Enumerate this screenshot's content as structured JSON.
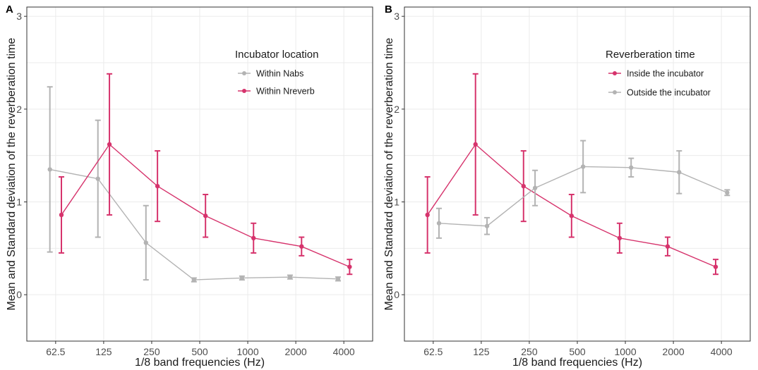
{
  "chart_data": [
    {
      "type": "line",
      "panel_label": "A",
      "xlabel": "1/8 band frequencies (Hz)",
      "ylabel": "Mean and Standard deviation of the reverberation time",
      "categories": [
        "62.5",
        "125",
        "250",
        "500",
        "1000",
        "2000",
        "4000"
      ],
      "yticks": [
        "0",
        "1",
        "2",
        "3"
      ],
      "ylim": [
        -0.5,
        3.1
      ],
      "legend_title": "Incubator location",
      "legend_position": "top-right",
      "series": [
        {
          "name": "Within Nabs",
          "color": "#b3b3b3",
          "offset": -0.12,
          "values": [
            1.35,
            1.25,
            0.56,
            0.16,
            0.18,
            0.19,
            0.17
          ],
          "sd": [
            0.89,
            0.63,
            0.4,
            0.02,
            0.02,
            0.02,
            0.02
          ]
        },
        {
          "name": "Within Nreverb",
          "color": "#d6336c",
          "offset": 0.12,
          "values": [
            0.86,
            1.62,
            1.17,
            0.85,
            0.61,
            0.52,
            0.3
          ],
          "sd": [
            0.41,
            0.76,
            0.38,
            0.23,
            0.16,
            0.1,
            0.08
          ]
        }
      ]
    },
    {
      "type": "line",
      "panel_label": "B",
      "xlabel": "1/8 band frequencies (Hz)",
      "ylabel": "Mean and Standard deviation of the reverberation time",
      "categories": [
        "62.5",
        "125",
        "250",
        "500",
        "1000",
        "2000",
        "4000"
      ],
      "yticks": [
        "0",
        "1",
        "2",
        "3"
      ],
      "ylim": [
        -0.5,
        3.1
      ],
      "legend_title": "Reverberation time",
      "legend_position": "top-right",
      "series": [
        {
          "name": "Inside the incubator",
          "color": "#d6336c",
          "offset": -0.12,
          "values": [
            0.86,
            1.62,
            1.17,
            0.85,
            0.61,
            0.52,
            0.3
          ],
          "sd": [
            0.41,
            0.76,
            0.38,
            0.23,
            0.16,
            0.1,
            0.08
          ]
        },
        {
          "name": "Outside the incubator",
          "color": "#b3b3b3",
          "offset": 0.12,
          "values": [
            0.77,
            0.74,
            1.15,
            1.38,
            1.37,
            1.32,
            1.1
          ],
          "sd": [
            0.16,
            0.09,
            0.19,
            0.28,
            0.1,
            0.23,
            0.03
          ]
        }
      ]
    }
  ]
}
